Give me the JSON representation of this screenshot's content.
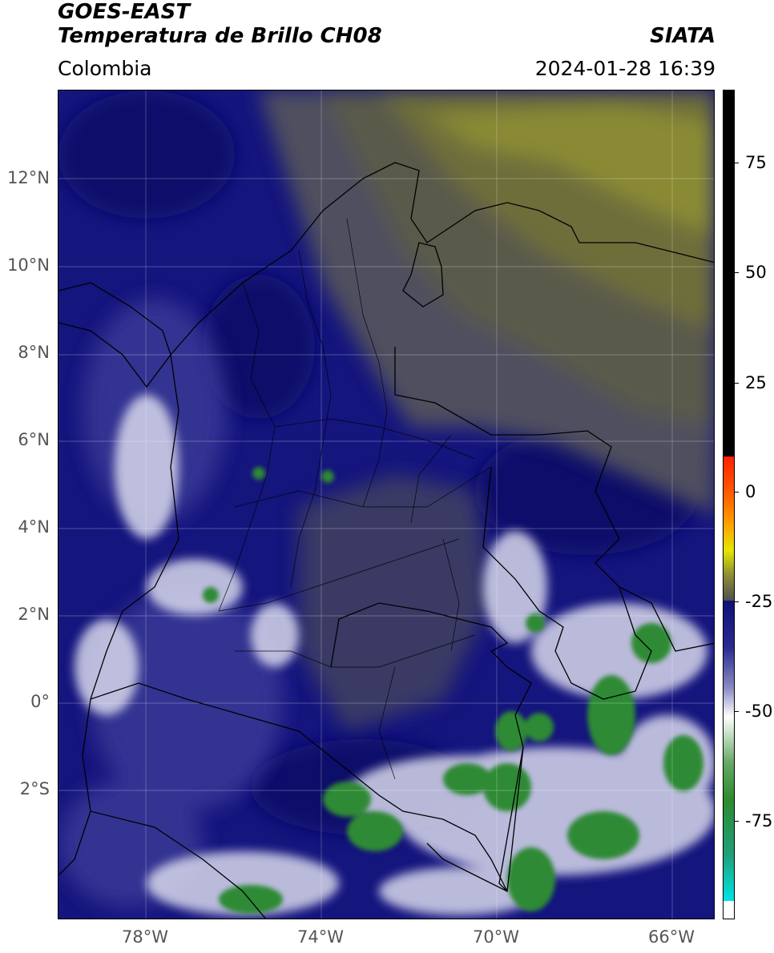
{
  "header": {
    "satellite": "GOES-EAST",
    "product": "Temperatura de Brillo CH08",
    "region": "Colombia",
    "organization": "SIATA",
    "datetime": "2024-01-28 16:39"
  },
  "map": {
    "lat_labels": [
      "12°N",
      "10°N",
      "8°N",
      "6°N",
      "4°N",
      "2°N",
      "0°",
      "2°S"
    ],
    "lon_labels": [
      "78°W",
      "74°W",
      "70°W",
      "66°W"
    ],
    "lon_range": [
      -80,
      -65
    ],
    "lat_range": [
      -5,
      14
    ]
  },
  "colorbar": {
    "ticks": [
      "75",
      "50",
      "25",
      "0",
      "-25",
      "-50",
      "-75"
    ],
    "range": [
      -95,
      90
    ],
    "colors": {
      "black": "#000000",
      "red": "#ff2000",
      "orange": "#ff8c00",
      "yellow": "#e6e600",
      "olive": "#7f7f30",
      "gray": "#505050",
      "navy": "#10107a",
      "white": "#ffffff",
      "green": "#2e8b2e",
      "cyan": "#00e5e5"
    }
  }
}
